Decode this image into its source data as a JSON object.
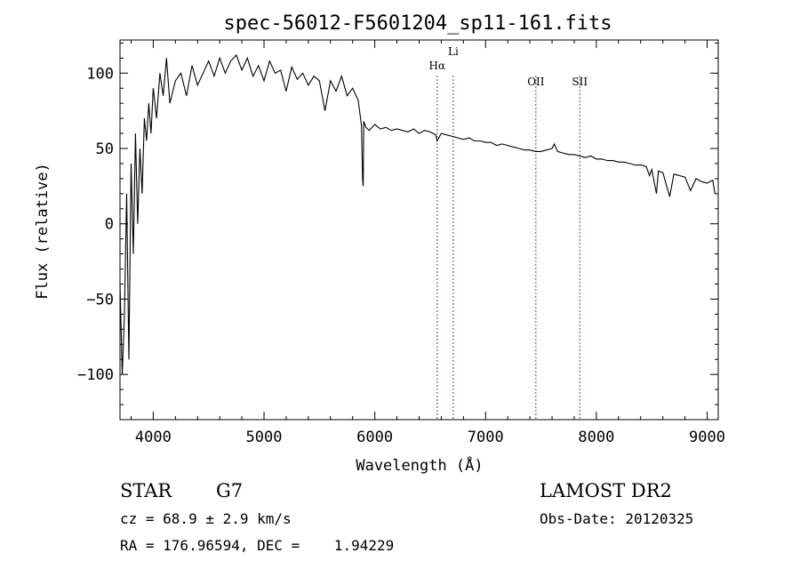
{
  "chart_data": {
    "type": "line",
    "title": "spec-56012-F5601204_sp11-161.fits",
    "xlabel": "Wavelength (Å)",
    "ylabel": "Flux (relative)",
    "xlim": [
      3700,
      9100
    ],
    "ylim": [
      -130,
      122
    ],
    "x_ticks": [
      4000,
      5000,
      6000,
      7000,
      8000,
      9000
    ],
    "y_ticks": [
      -100,
      -50,
      0,
      50,
      100
    ],
    "x_tick_labels": [
      "4000",
      "5000",
      "6000",
      "7000",
      "8000",
      "9000"
    ],
    "y_tick_labels": [
      "−100",
      "−50",
      "0",
      "50",
      "100"
    ],
    "grid": false,
    "series": [
      {
        "x": [
          3700,
          3720,
          3740,
          3760,
          3780,
          3800,
          3820,
          3840,
          3860,
          3880,
          3900,
          3920,
          3940,
          3960,
          3980,
          4000,
          4030,
          4060,
          4090,
          4120,
          4150,
          4200,
          4250,
          4300,
          4350,
          4400,
          4450,
          4500,
          4550,
          4600,
          4650,
          4700,
          4750,
          4800,
          4850,
          4900,
          4950,
          5000,
          5050,
          5100,
          5150,
          5200,
          5250,
          5300,
          5350,
          5400,
          5450,
          5500,
          5550,
          5600,
          5650,
          5700,
          5750,
          5800,
          5850,
          5880,
          5890,
          5895,
          5900,
          5920,
          5950,
          6000,
          6050,
          6100,
          6150,
          6200,
          6250,
          6300,
          6350,
          6400,
          6450,
          6500,
          6550,
          6563,
          6600,
          6650,
          6700,
          6750,
          6800,
          6850,
          6900,
          6950,
          7000,
          7050,
          7100,
          7150,
          7200,
          7250,
          7300,
          7350,
          7400,
          7450,
          7500,
          7550,
          7600,
          7620,
          7650,
          7700,
          7750,
          7800,
          7850,
          7900,
          7950,
          8000,
          8050,
          8100,
          8150,
          8200,
          8250,
          8300,
          8350,
          8400,
          8450,
          8480,
          8500,
          8542,
          8560,
          8600,
          8662,
          8700,
          8750,
          8800,
          8850,
          8900,
          8950,
          9000,
          9050,
          9070
        ],
        "y": [
          -40,
          -100,
          -60,
          20,
          -90,
          40,
          -20,
          60,
          0,
          50,
          20,
          70,
          55,
          80,
          60,
          90,
          70,
          100,
          85,
          110,
          80,
          95,
          100,
          85,
          105,
          92,
          100,
          108,
          98,
          110,
          100,
          108,
          112,
          102,
          110,
          98,
          105,
          95,
          108,
          100,
          102,
          88,
          104,
          96,
          100,
          92,
          98,
          95,
          75,
          95,
          88,
          98,
          85,
          90,
          82,
          65,
          30,
          25,
          68,
          64,
          62,
          66,
          63,
          64,
          62,
          63,
          62,
          61,
          63,
          60,
          62,
          61,
          59,
          55,
          60,
          59,
          58,
          57,
          56,
          57,
          55,
          55,
          54,
          54,
          52,
          53,
          52,
          51,
          50,
          49,
          49,
          48,
          48,
          49,
          50,
          53,
          48,
          47,
          46,
          46,
          45,
          44,
          45,
          43,
          43,
          42,
          42,
          41,
          41,
          40,
          39,
          39,
          38,
          32,
          36,
          20,
          35,
          34,
          18,
          33,
          32,
          31,
          22,
          30,
          28,
          27,
          29,
          20
        ]
      }
    ],
    "annotations": [
      {
        "label": "Hα",
        "x": 6563
      },
      {
        "label": "Li",
        "x": 6708
      },
      {
        "label": "OII",
        "x": 7454
      },
      {
        "label": "SII",
        "x": 7850
      }
    ]
  },
  "info": {
    "object_class": "STAR",
    "subclass": "G7",
    "survey": "LAMOST DR2",
    "redshift": "cz = 68.9 ± 2.9 km/s",
    "obs_date": "Obs-Date: 20120325",
    "coords": "RA = 176.96594, DEC =    1.94229"
  },
  "colors": {
    "line_markers": "#a0302a"
  }
}
